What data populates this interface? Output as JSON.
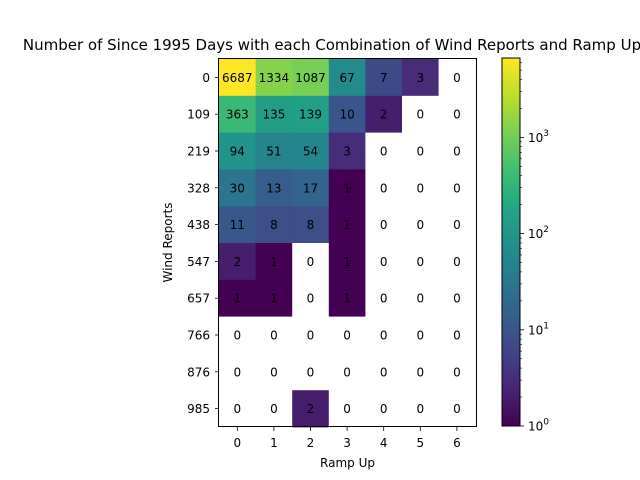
{
  "chart_data": {
    "type": "heatmap",
    "title": "Number of Since 1995 Days with each Combination of Wind Reports and Ramp Up",
    "xlabel": "Ramp Up",
    "ylabel": "Wind Reports",
    "x_categories": [
      "0",
      "1",
      "2",
      "3",
      "4",
      "5",
      "6"
    ],
    "y_categories": [
      "0",
      "109",
      "219",
      "328",
      "438",
      "547",
      "657",
      "766",
      "876",
      "985"
    ],
    "values": [
      [
        6687,
        1334,
        1087,
        67,
        7,
        3,
        0
      ],
      [
        363,
        135,
        139,
        10,
        2,
        0,
        0
      ],
      [
        94,
        51,
        54,
        3,
        0,
        0,
        0
      ],
      [
        30,
        13,
        17,
        1,
        0,
        0,
        0
      ],
      [
        11,
        8,
        8,
        1,
        0,
        0,
        0
      ],
      [
        2,
        1,
        0,
        1,
        0,
        0,
        0
      ],
      [
        1,
        1,
        0,
        1,
        0,
        0,
        0
      ],
      [
        0,
        0,
        0,
        0,
        0,
        0,
        0
      ],
      [
        0,
        0,
        0,
        0,
        0,
        0,
        0
      ],
      [
        0,
        0,
        2,
        0,
        0,
        0,
        0
      ]
    ],
    "colorscale": "viridis",
    "color_scale_type": "log",
    "zero_color": "#ffffff",
    "colorbar": {
      "range": [
        1,
        6687
      ],
      "ticks": [
        {
          "base": "10",
          "exp": "0"
        },
        {
          "base": "10",
          "exp": "1"
        },
        {
          "base": "10",
          "exp": "2"
        },
        {
          "base": "10",
          "exp": "3"
        }
      ]
    }
  }
}
